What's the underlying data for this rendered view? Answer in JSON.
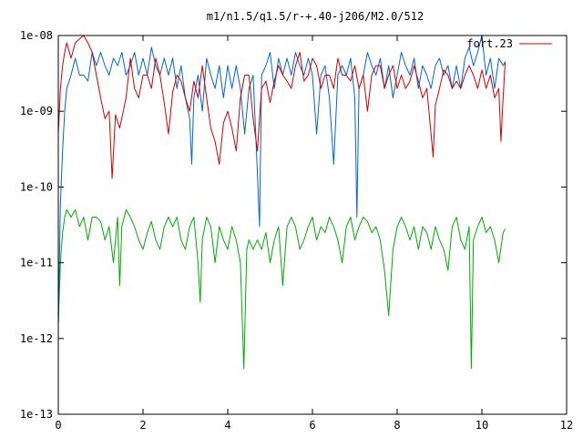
{
  "chart_data": {
    "type": "line",
    "title": "m1/n1.5/q1.5/r-+.40-j206/M2.0/512",
    "xlabel": "",
    "ylabel": "",
    "xlim": [
      0,
      12
    ],
    "ylim": [
      1e-13,
      1e-08
    ],
    "yscale": "log",
    "grid": false,
    "legend_position": "top-right",
    "x_ticks": [
      0,
      2,
      4,
      6,
      8,
      10,
      12
    ],
    "x_tick_labels": [
      "0",
      "2",
      "4",
      "6",
      "8",
      "10",
      "12"
    ],
    "y_ticks": [
      1e-13,
      1e-12,
      1e-11,
      1e-10,
      1e-09,
      1e-08
    ],
    "y_tick_labels": [
      "1e-13",
      "1e-12",
      "1e-11",
      "1e-10",
      "1e-09",
      "1e-08"
    ],
    "series": [
      {
        "name": "fort.23",
        "color": "#cc0000",
        "x": [
          0.0,
          0.05,
          0.1,
          0.15,
          0.2,
          0.3,
          0.4,
          0.5,
          0.6,
          0.7,
          0.8,
          0.9,
          1.0,
          1.1,
          1.2,
          1.27,
          1.35,
          1.45,
          1.6,
          1.7,
          1.8,
          1.9,
          2.0,
          2.1,
          2.2,
          2.3,
          2.4,
          2.5,
          2.6,
          2.7,
          2.8,
          2.9,
          3.0,
          3.1,
          3.2,
          3.3,
          3.4,
          3.5,
          3.6,
          3.7,
          3.8,
          3.9,
          4.0,
          4.1,
          4.2,
          4.3,
          4.4,
          4.5,
          4.6,
          4.7,
          4.75,
          4.8,
          4.9,
          5.0,
          5.1,
          5.2,
          5.3,
          5.4,
          5.5,
          5.6,
          5.7,
          5.8,
          5.9,
          6.0,
          6.1,
          6.2,
          6.3,
          6.4,
          6.5,
          6.6,
          6.7,
          6.8,
          6.9,
          7.0,
          7.1,
          7.2,
          7.3,
          7.4,
          7.5,
          7.6,
          7.7,
          7.8,
          7.9,
          8.0,
          8.1,
          8.2,
          8.3,
          8.4,
          8.5,
          8.6,
          8.7,
          8.8,
          8.85,
          8.9,
          9.0,
          9.1,
          9.2,
          9.3,
          9.4,
          9.5,
          9.6,
          9.7,
          9.8,
          9.9,
          10.0,
          10.1,
          10.2,
          10.3,
          10.4,
          10.45,
          10.5,
          10.55
        ],
        "y": [
          5e-10,
          2e-09,
          4e-09,
          6e-09,
          8e-09,
          5e-09,
          8e-09,
          9e-09,
          1e-08,
          8e-09,
          6e-09,
          3e-09,
          1.5e-09,
          8e-10,
          1e-09,
          1.3e-10,
          9e-10,
          6e-10,
          1.5e-09,
          5e-09,
          2e-09,
          1.5e-09,
          3e-09,
          3e-09,
          2e-09,
          5e-09,
          3e-09,
          1.3e-09,
          5e-10,
          1.8e-09,
          3e-09,
          2.5e-09,
          1.5e-09,
          1e-09,
          2.5e-09,
          1.5e-09,
          4e-09,
          1.5e-09,
          6e-10,
          4e-10,
          2e-10,
          7e-10,
          1e-09,
          6e-10,
          3e-10,
          1.5e-09,
          3e-09,
          3e-09,
          8e-10,
          3e-10,
          8e-10,
          2e-09,
          2.5e-09,
          1.3e-09,
          2.5e-09,
          4e-09,
          3e-09,
          2.5e-09,
          2e-09,
          4e-09,
          6e-09,
          2.5e-09,
          3e-09,
          5e-09,
          4e-09,
          2e-09,
          3e-09,
          3e-09,
          2e-09,
          5e-09,
          3e-09,
          3e-09,
          2.5e-09,
          4e-09,
          2e-09,
          3e-09,
          1e-09,
          3e-09,
          4e-09,
          4e-09,
          2e-09,
          3e-09,
          4e-09,
          2e-09,
          3e-09,
          2e-09,
          2.5e-09,
          4e-09,
          2.5e-09,
          1.5e-09,
          2e-09,
          5e-10,
          2.5e-10,
          1.2e-09,
          2e-09,
          3.5e-09,
          3e-09,
          2e-09,
          2.5e-09,
          2e-09,
          3e-09,
          4e-09,
          3e-09,
          2e-09,
          3.5e-09,
          2e-09,
          3e-09,
          1.5e-09,
          2e-09,
          4e-10,
          1.5e-09,
          4.5e-09
        ]
      },
      {
        "name": "",
        "color": "#0066cc",
        "x": [
          0.0,
          0.05,
          0.1,
          0.15,
          0.2,
          0.3,
          0.4,
          0.5,
          0.6,
          0.7,
          0.8,
          0.9,
          1.0,
          1.1,
          1.2,
          1.3,
          1.4,
          1.5,
          1.6,
          1.7,
          1.8,
          1.9,
          2.0,
          2.1,
          2.2,
          2.3,
          2.4,
          2.5,
          2.6,
          2.7,
          2.8,
          2.9,
          3.0,
          3.1,
          3.15,
          3.2,
          3.3,
          3.4,
          3.5,
          3.6,
          3.7,
          3.8,
          3.9,
          4.0,
          4.1,
          4.2,
          4.3,
          4.4,
          4.5,
          4.6,
          4.7,
          4.75,
          4.8,
          4.9,
          5.0,
          5.1,
          5.2,
          5.3,
          5.4,
          5.5,
          5.6,
          5.7,
          5.8,
          5.9,
          6.0,
          6.1,
          6.2,
          6.3,
          6.4,
          6.5,
          6.6,
          6.7,
          6.8,
          6.9,
          7.0,
          7.05,
          7.1,
          7.2,
          7.3,
          7.4,
          7.5,
          7.6,
          7.7,
          7.8,
          7.9,
          8.0,
          8.1,
          8.2,
          8.3,
          8.4,
          8.5,
          8.6,
          8.7,
          8.8,
          8.9,
          9.0,
          9.1,
          9.2,
          9.3,
          9.4,
          9.5,
          9.6,
          9.7,
          9.8,
          9.9,
          10.0,
          10.1,
          10.2,
          10.3,
          10.4,
          10.5,
          10.55
        ],
        "y": [
          1.5e-12,
          6e-11,
          3e-10,
          1e-09,
          2e-09,
          3e-09,
          5e-09,
          3e-09,
          3e-09,
          2.5e-09,
          6e-09,
          4e-09,
          6e-09,
          4e-09,
          3e-09,
          5e-09,
          4e-09,
          6e-09,
          3e-09,
          4e-09,
          6e-09,
          3e-09,
          5e-09,
          3e-09,
          7e-09,
          4e-09,
          3e-09,
          5e-09,
          3e-09,
          5e-09,
          2e-09,
          4e-09,
          1.5e-09,
          8e-10,
          2e-10,
          1.5e-09,
          3e-09,
          1e-09,
          5e-09,
          3e-09,
          2e-09,
          4e-09,
          1.5e-09,
          4e-09,
          2e-09,
          4e-09,
          2e-09,
          5e-10,
          2e-09,
          3e-09,
          1.5e-10,
          3e-11,
          3e-09,
          4e-09,
          6e-09,
          2e-09,
          5e-09,
          3e-09,
          5e-09,
          3e-09,
          6e-09,
          4e-09,
          3e-09,
          5e-09,
          3e-09,
          5e-10,
          3e-09,
          4e-09,
          1.5e-09,
          2e-10,
          3e-09,
          4e-09,
          3e-09,
          5e-09,
          1.5e-09,
          4e-11,
          2e-09,
          3e-09,
          6e-09,
          4e-09,
          3e-09,
          5e-09,
          2e-09,
          4e-09,
          1.5e-09,
          3e-09,
          6e-09,
          4e-09,
          3e-09,
          5e-09,
          2e-09,
          4e-09,
          3e-09,
          2e-09,
          4e-09,
          5e-09,
          3e-09,
          4e-09,
          2e-09,
          4e-09,
          2e-09,
          5e-09,
          7e-09,
          4e-09,
          6e-09,
          1e-08,
          3e-09,
          5e-09,
          2e-09,
          5e-09,
          4e-09,
          4.5e-09
        ]
      },
      {
        "name": "",
        "color": "#00aa00",
        "x": [
          0.0,
          0.05,
          0.1,
          0.15,
          0.2,
          0.3,
          0.4,
          0.5,
          0.6,
          0.7,
          0.8,
          0.9,
          1.0,
          1.1,
          1.2,
          1.3,
          1.4,
          1.45,
          1.5,
          1.6,
          1.7,
          1.8,
          1.9,
          2.0,
          2.1,
          2.2,
          2.3,
          2.4,
          2.5,
          2.6,
          2.7,
          2.8,
          2.9,
          3.0,
          3.1,
          3.2,
          3.3,
          3.35,
          3.4,
          3.5,
          3.6,
          3.7,
          3.8,
          3.9,
          4.0,
          4.1,
          4.2,
          4.3,
          4.38,
          4.45,
          4.5,
          4.6,
          4.7,
          4.8,
          4.9,
          5.0,
          5.1,
          5.2,
          5.3,
          5.4,
          5.5,
          5.6,
          5.7,
          5.8,
          5.9,
          6.0,
          6.1,
          6.2,
          6.3,
          6.4,
          6.5,
          6.6,
          6.7,
          6.8,
          6.9,
          7.0,
          7.1,
          7.2,
          7.3,
          7.4,
          7.5,
          7.6,
          7.7,
          7.8,
          7.9,
          8.0,
          8.1,
          8.2,
          8.3,
          8.4,
          8.5,
          8.6,
          8.7,
          8.8,
          8.9,
          9.0,
          9.1,
          9.2,
          9.3,
          9.4,
          9.5,
          9.6,
          9.7,
          9.75,
          9.8,
          9.9,
          10.0,
          10.1,
          10.2,
          10.3,
          10.4,
          10.5,
          10.55
        ],
        "y": [
          1.5e-12,
          1e-11,
          2.5e-11,
          4e-11,
          5e-11,
          4e-11,
          5e-11,
          3e-11,
          4e-11,
          2e-11,
          4e-11,
          4e-11,
          3.5e-11,
          2e-11,
          3e-11,
          1e-11,
          4e-11,
          5e-12,
          3e-11,
          5e-11,
          4e-11,
          3e-11,
          2e-11,
          1.5e-11,
          2.5e-11,
          3.5e-11,
          2e-11,
          1.5e-11,
          3e-11,
          4e-11,
          3e-11,
          4e-11,
          2e-11,
          1.5e-11,
          3e-11,
          4e-11,
          1e-11,
          3e-12,
          2e-11,
          4e-11,
          3e-11,
          1e-11,
          3e-11,
          2e-11,
          1.5e-11,
          3e-11,
          2e-11,
          1e-11,
          4e-13,
          1.5e-11,
          2e-11,
          1.5e-11,
          2e-11,
          1.5e-11,
          2.5e-11,
          1e-11,
          2e-11,
          3e-11,
          5e-12,
          3e-11,
          4e-11,
          3e-11,
          1.5e-11,
          2e-11,
          3e-11,
          4e-11,
          2e-11,
          3e-11,
          2.5e-11,
          4e-11,
          3e-11,
          2e-11,
          1e-11,
          3e-11,
          4e-11,
          2e-11,
          3e-11,
          4e-11,
          3.5e-11,
          2.5e-11,
          3e-11,
          2e-11,
          8e-12,
          2e-12,
          1.5e-11,
          3e-11,
          4e-11,
          3e-11,
          2e-11,
          3e-11,
          1.5e-11,
          3e-11,
          2.5e-11,
          1.5e-11,
          3e-11,
          2e-11,
          1.5e-11,
          8e-12,
          3e-11,
          4e-11,
          2e-11,
          1.5e-11,
          3e-11,
          4e-13,
          2e-11,
          3e-11,
          4e-11,
          2.5e-11,
          3e-11,
          2e-11,
          1e-11,
          2.5e-11,
          2.8e-11
        ]
      }
    ]
  }
}
